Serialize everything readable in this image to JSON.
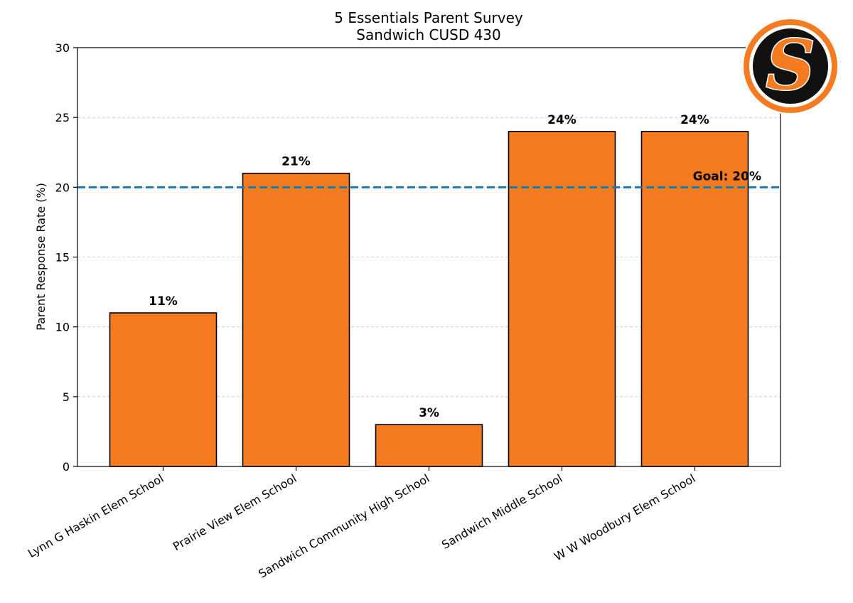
{
  "chart_data": {
    "type": "bar",
    "title": "5 Essentials Parent Survey",
    "subtitle": "Sandwich CUSD 430",
    "xlabel": "",
    "ylabel": "Parent Response Rate (%)",
    "ylim": [
      0,
      30
    ],
    "yticks": [
      0,
      5,
      10,
      15,
      20,
      25,
      30
    ],
    "grid": "horizontal-dashed",
    "categories": [
      "Lynn G Haskin Elem School",
      "Prairie View Elem School",
      "Sandwich Community High School",
      "Sandwich Middle School",
      "W W Woodbury Elem School"
    ],
    "values": [
      11,
      21,
      3,
      24,
      24
    ],
    "data_labels": [
      "11%",
      "21%",
      "3%",
      "24%",
      "24%"
    ],
    "goal": {
      "value": 20,
      "label": "Goal: 20%"
    },
    "colors": {
      "bar": "#f47b20",
      "bar_edge": "#000000",
      "goal_line": "#1f77b4",
      "grid": "#c8c8c8",
      "logo_ring": "#f47b20",
      "logo_inner": "#111111",
      "logo_letter": "#f47b20"
    },
    "logo": {
      "text": "S"
    }
  }
}
